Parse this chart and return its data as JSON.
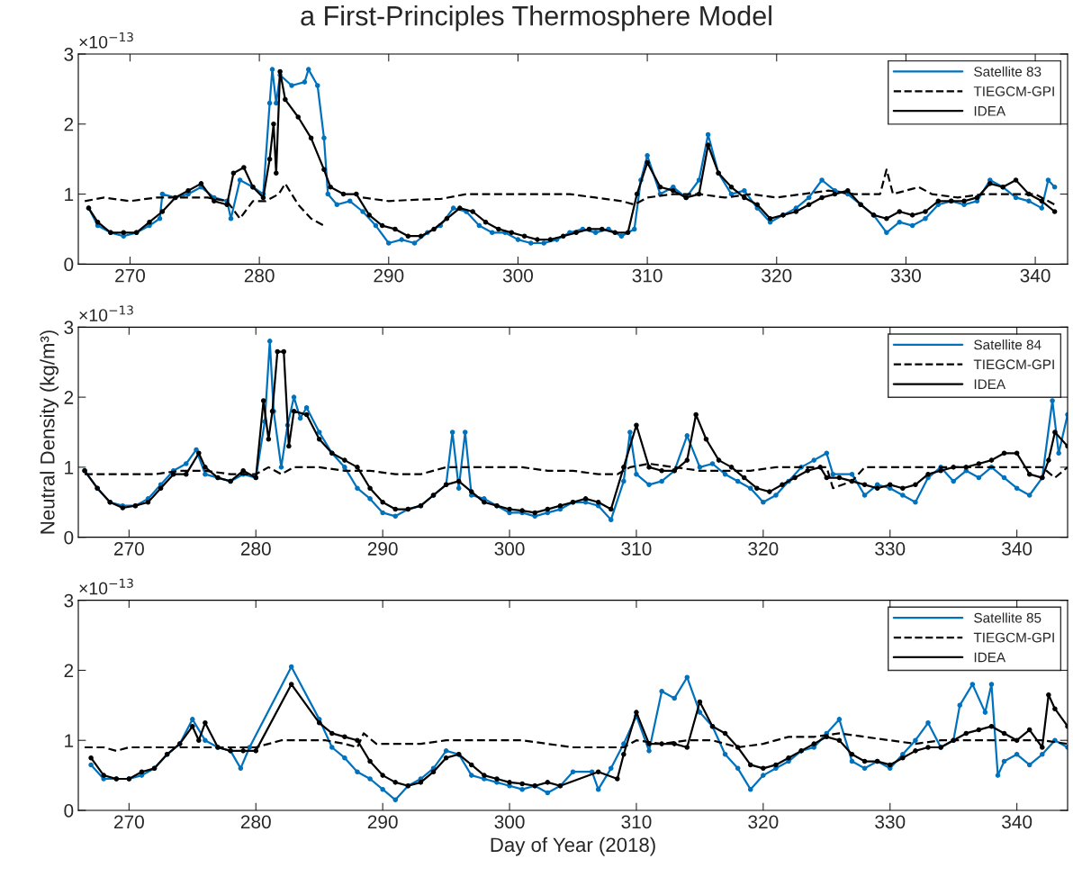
{
  "chart_data": [
    {
      "type": "line",
      "title": "a First-Principles Thermosphere Model",
      "annotations": [
        "×10$^{−13}$"
      ],
      "xlim": [
        266,
        342.5
      ],
      "xticks": [
        270,
        280,
        290,
        300,
        310,
        320,
        330,
        340
      ],
      "ylim": [
        0,
        3
      ],
      "yticks": [
        0,
        1,
        2,
        3
      ],
      "legend": "top right",
      "grid": false,
      "series": [
        {
          "name": "Satellite 83",
          "color": "#0072bd",
          "marker": "circle",
          "line_style": "solid",
          "x": [
            266.8,
            267.5,
            268.5,
            269.5,
            270.5,
            271.5,
            272.3,
            272.5,
            273.5,
            274.5,
            275.5,
            276.5,
            277.5,
            277.8,
            278.5,
            279.5,
            280.3,
            280.8,
            281.0,
            281.3,
            281.6,
            282.5,
            283.5,
            283.8,
            284.5,
            285.0,
            285.3,
            286,
            287,
            288,
            289,
            290,
            291,
            292,
            293,
            294,
            295,
            296,
            297,
            298,
            299,
            300,
            301,
            302,
            303,
            304,
            305,
            306,
            307,
            308,
            309,
            309.5,
            310,
            311,
            312,
            313,
            314,
            314.7,
            315.5,
            316.5,
            317.5,
            318.5,
            319.5,
            320.5,
            321.5,
            322.5,
            323.5,
            324.5,
            325.5,
            326.5,
            327.5,
            328.5,
            329.5,
            330.5,
            331.5,
            332.5,
            333.5,
            334.5,
            335.5,
            336.5,
            337.5,
            338.5,
            339.5,
            340.5,
            341,
            341.5
          ],
          "values": [
            0.8,
            0.55,
            0.45,
            0.4,
            0.45,
            0.55,
            0.65,
            1.0,
            0.95,
            1.0,
            1.1,
            0.95,
            0.9,
            0.65,
            1.2,
            1.1,
            1.0,
            2.3,
            2.78,
            2.3,
            2.7,
            2.55,
            2.6,
            2.78,
            2.55,
            1.8,
            1.0,
            0.85,
            0.9,
            0.75,
            0.55,
            0.3,
            0.35,
            0.3,
            0.45,
            0.55,
            0.8,
            0.75,
            0.55,
            0.45,
            0.45,
            0.35,
            0.3,
            0.3,
            0.35,
            0.45,
            0.5,
            0.45,
            0.5,
            0.4,
            0.5,
            1.2,
            1.55,
            1.0,
            1.1,
            0.95,
            1.2,
            1.85,
            1.3,
            1.0,
            1.05,
            0.8,
            0.6,
            0.7,
            0.8,
            0.95,
            1.2,
            1.05,
            1.0,
            0.85,
            0.7,
            0.45,
            0.6,
            0.55,
            0.65,
            0.85,
            0.9,
            0.85,
            0.9,
            1.2,
            1.1,
            0.95,
            0.9,
            0.8,
            1.2,
            1.1
          ]
        },
        {
          "name": "TIEGCM-GPI",
          "color": "#000000",
          "marker": "none",
          "line_style": "dashed",
          "x": [
            266.5,
            268,
            270,
            272,
            274,
            276,
            277.5,
            278.5,
            279.5,
            280.5,
            281.5,
            282,
            283,
            284,
            285,
            286.5,
            288,
            290,
            292,
            294,
            296,
            298,
            300,
            302,
            304,
            306,
            308,
            309,
            310,
            312,
            314,
            316,
            318,
            320,
            322,
            324,
            326,
            328,
            328.5,
            329,
            330,
            331,
            332,
            334,
            336,
            338,
            340,
            341.5
          ],
          "values": [
            0.9,
            0.95,
            0.9,
            0.95,
            0.95,
            0.95,
            0.9,
            0.65,
            0.9,
            0.9,
            1.0,
            1.15,
            0.85,
            0.65,
            0.55,
            null,
            0.95,
            0.9,
            0.92,
            0.93,
            1.0,
            1.0,
            1.0,
            1.0,
            1.0,
            0.95,
            0.9,
            0.85,
            0.95,
            1.0,
            1.0,
            0.95,
            1.0,
            0.95,
            1.0,
            1.05,
            1.0,
            1.0,
            1.35,
            1.0,
            1.05,
            1.1,
            1.0,
            0.95,
            1.0,
            1.0,
            1.0,
            0.85
          ]
        },
        {
          "name": "IDEA",
          "color": "#000000",
          "marker": "circle",
          "line_style": "solid",
          "x": [
            266.8,
            267.5,
            268.5,
            269.5,
            270.5,
            271.5,
            272.5,
            273.5,
            274.5,
            275.5,
            276.5,
            277.5,
            278,
            278.8,
            279.5,
            280.3,
            280.8,
            281.1,
            281.3,
            281.6,
            282,
            283,
            284,
            285,
            285.5,
            286.5,
            287.5,
            288.5,
            289.5,
            290.5,
            291.5,
            292.5,
            293.5,
            294.5,
            295.5,
            296.5,
            297.5,
            298.5,
            299.5,
            300.5,
            301.5,
            302.5,
            303.5,
            304.5,
            305.5,
            306.5,
            307.5,
            308.5,
            309.2,
            310,
            311,
            312,
            313,
            314,
            314.7,
            315.5,
            316.5,
            317.5,
            318.5,
            319.5,
            320.5,
            321.5,
            322.5,
            323.5,
            324.5,
            325.5,
            326.5,
            327.5,
            328.5,
            329.5,
            330.5,
            331.5,
            332.5,
            333.5,
            334.5,
            335.5,
            336.5,
            337.5,
            338.5,
            339.5,
            340.5,
            341.5
          ],
          "values": [
            0.8,
            0.6,
            0.45,
            0.45,
            0.45,
            0.6,
            0.75,
            0.95,
            1.05,
            1.15,
            0.9,
            0.85,
            1.3,
            1.38,
            1.1,
            0.95,
            1.5,
            2.0,
            1.3,
            2.75,
            2.35,
            2.1,
            1.8,
            1.35,
            1.1,
            1.0,
            1.0,
            0.7,
            0.55,
            0.5,
            0.4,
            0.4,
            0.5,
            0.65,
            0.8,
            0.75,
            0.6,
            0.5,
            0.45,
            0.4,
            0.35,
            0.35,
            0.4,
            0.45,
            0.5,
            0.5,
            0.45,
            0.45,
            1.0,
            1.45,
            1.1,
            1.05,
            0.95,
            1.0,
            1.7,
            1.3,
            1.1,
            0.95,
            0.85,
            0.65,
            0.7,
            0.75,
            0.85,
            0.95,
            1.0,
            1.05,
            0.85,
            0.7,
            0.65,
            0.75,
            0.7,
            0.75,
            0.9,
            0.9,
            0.9,
            0.95,
            1.15,
            1.1,
            1.2,
            1.0,
            0.9,
            0.75
          ]
        }
      ]
    },
    {
      "type": "line",
      "ylabel": "Neutral Density (kg/m³)",
      "annotations": [
        "×10$^{−13}$"
      ],
      "xlim": [
        266,
        344
      ],
      "xticks": [
        270,
        280,
        290,
        300,
        310,
        320,
        330,
        340
      ],
      "ylim": [
        0,
        3
      ],
      "yticks": [
        0,
        1,
        2,
        3
      ],
      "legend": "top right",
      "grid": false,
      "series": [
        {
          "name": "Satellite 84",
          "color": "#0072bd",
          "marker": "circle",
          "line_style": "solid",
          "x": [
            266.5,
            267.5,
            268.5,
            269.5,
            270.5,
            271.5,
            272.5,
            273.5,
            274.5,
            275.3,
            276,
            277,
            278,
            279,
            280,
            280.7,
            281.1,
            281.4,
            282,
            282.5,
            283,
            283.5,
            284,
            285,
            286,
            287,
            288,
            289,
            290,
            291,
            292,
            293,
            294,
            295,
            295.5,
            296,
            296.5,
            297,
            298,
            299,
            300,
            301,
            302,
            303,
            304,
            305,
            306,
            307,
            308,
            309,
            309.5,
            310,
            311,
            312,
            313,
            314,
            315,
            316,
            317,
            318,
            319,
            320,
            321,
            322,
            323,
            324,
            325,
            325.5,
            327,
            328,
            329,
            330,
            331,
            332,
            333,
            334,
            335,
            336,
            337,
            338,
            339,
            340,
            341,
            342,
            342.8,
            343.3,
            344
          ],
          "values": [
            0.95,
            0.7,
            0.5,
            0.45,
            0.45,
            0.55,
            0.75,
            0.95,
            1.05,
            1.25,
            0.9,
            0.85,
            0.8,
            0.9,
            0.85,
            1.65,
            2.8,
            1.8,
            1.0,
            1.6,
            2.0,
            1.7,
            1.85,
            1.5,
            1.2,
            1.0,
            0.7,
            0.55,
            0.35,
            0.3,
            0.4,
            0.45,
            0.6,
            0.75,
            1.5,
            0.7,
            1.5,
            0.6,
            0.55,
            0.45,
            0.35,
            0.35,
            0.3,
            0.35,
            0.4,
            0.5,
            0.5,
            0.45,
            0.25,
            0.8,
            1.5,
            0.9,
            0.75,
            0.8,
            0.95,
            1.45,
            1.0,
            1.05,
            0.9,
            0.8,
            0.7,
            0.5,
            0.6,
            0.8,
            1.0,
            1.1,
            1.2,
            0.9,
            0.9,
            0.6,
            0.75,
            0.7,
            0.6,
            0.5,
            0.85,
            1.0,
            0.8,
            0.95,
            0.85,
            1.0,
            0.85,
            0.7,
            0.6,
            0.85,
            1.95,
            1.2,
            1.75
          ]
        },
        {
          "name": "TIEGCM-GPI",
          "color": "#000000",
          "marker": "none",
          "line_style": "dashed",
          "x": [
            266.5,
            268,
            270,
            272,
            274,
            276,
            278,
            280,
            281,
            282,
            283,
            285,
            287,
            289,
            291,
            293,
            295,
            297,
            299,
            301,
            303,
            305,
            307,
            308.5,
            309.5,
            311,
            313,
            315,
            317,
            319,
            321,
            323,
            325,
            325.5,
            327,
            328,
            330,
            332,
            334,
            336,
            338,
            340,
            342,
            343,
            344
          ],
          "values": [
            0.9,
            0.9,
            0.9,
            0.9,
            0.95,
            0.95,
            0.9,
            0.9,
            1.0,
            0.9,
            1.0,
            1.0,
            0.95,
            0.95,
            0.9,
            0.9,
            1.0,
            1.0,
            1.0,
            1.0,
            0.95,
            0.95,
            0.9,
            0.9,
            1.0,
            1.05,
            1.0,
            0.95,
            0.95,
            0.95,
            1.0,
            1.0,
            1.0,
            0.7,
            0.8,
            1.0,
            1.0,
            1.0,
            1.0,
            1.0,
            1.0,
            1.0,
            1.0,
            0.85,
            1.0
          ]
        },
        {
          "name": "IDEA",
          "color": "#000000",
          "marker": "circle",
          "line_style": "solid",
          "x": [
            266.5,
            267.5,
            268.5,
            269.5,
            270.5,
            271.5,
            272.5,
            273.5,
            274.5,
            275.5,
            276,
            277,
            278,
            279,
            280,
            280.6,
            281,
            281.3,
            281.7,
            282.2,
            282.6,
            283,
            284,
            285,
            286,
            287,
            288,
            289,
            290,
            291,
            292,
            293,
            294,
            295,
            296,
            297,
            298,
            299,
            300,
            301,
            302,
            303,
            304,
            305,
            306,
            307,
            308,
            309,
            310,
            311,
            312,
            313,
            314,
            314.7,
            315.5,
            316.5,
            317.5,
            318.5,
            319.5,
            320.5,
            321.5,
            322.5,
            323.5,
            324.5,
            325,
            326,
            327,
            328,
            329,
            330,
            331,
            332,
            333,
            334,
            335,
            336,
            337,
            338,
            339,
            340,
            341,
            342,
            342.5,
            343,
            344
          ],
          "values": [
            0.95,
            0.7,
            0.5,
            0.42,
            0.45,
            0.5,
            0.7,
            0.9,
            0.9,
            1.2,
            1.0,
            0.85,
            0.8,
            0.95,
            0.85,
            1.95,
            1.4,
            1.8,
            2.65,
            2.65,
            1.3,
            1.8,
            1.75,
            1.4,
            1.2,
            1.1,
            1.0,
            0.7,
            0.5,
            0.4,
            0.4,
            0.45,
            0.6,
            0.75,
            0.8,
            0.65,
            0.5,
            0.45,
            0.4,
            0.38,
            0.35,
            0.4,
            0.45,
            0.5,
            0.55,
            0.5,
            0.4,
            1.0,
            1.6,
            1.0,
            0.95,
            0.95,
            1.1,
            1.75,
            1.4,
            1.1,
            1.0,
            0.85,
            0.7,
            0.65,
            0.75,
            0.85,
            0.95,
            1.0,
            0.85,
            0.85,
            0.8,
            0.75,
            0.7,
            0.75,
            0.7,
            0.75,
            0.9,
            0.95,
            1.0,
            1.0,
            1.05,
            1.1,
            1.2,
            1.2,
            0.9,
            0.85,
            1.1,
            1.5,
            1.3
          ]
        }
      ]
    },
    {
      "type": "line",
      "xlabel": "Day of Year (2018)",
      "annotations": [
        "×10$^{−13}$"
      ],
      "xlim": [
        266,
        344
      ],
      "xticks": [
        270,
        280,
        290,
        300,
        310,
        320,
        330,
        340
      ],
      "ylim": [
        0,
        3
      ],
      "yticks": [
        0,
        1,
        2,
        3
      ],
      "legend": "top right",
      "grid": false,
      "series": [
        {
          "name": "Satellite 85",
          "color": "#0072bd",
          "marker": "circle",
          "line_style": "solid",
          "x": [
            267,
            268,
            269,
            270,
            271,
            272,
            273,
            274,
            275,
            276,
            277,
            278,
            278.8,
            279.5,
            282.8,
            285,
            286,
            287,
            288,
            289,
            290,
            291,
            292,
            293,
            294,
            295,
            296,
            297,
            298,
            299,
            300,
            301,
            302,
            303,
            304,
            305,
            306.5,
            307,
            308,
            309,
            310,
            311,
            312,
            313,
            314,
            315,
            316,
            317,
            318,
            319,
            320,
            321,
            322,
            323,
            324,
            325,
            326,
            327,
            328,
            329,
            330,
            331,
            332,
            333,
            334,
            335,
            335.5,
            336.5,
            337.5,
            338,
            338.5,
            339,
            340,
            341,
            342,
            343,
            344
          ],
          "values": [
            0.65,
            0.45,
            0.45,
            0.45,
            0.5,
            0.6,
            0.8,
            0.95,
            1.3,
            1.0,
            0.9,
            0.85,
            0.6,
            0.9,
            2.05,
            1.3,
            0.9,
            0.75,
            0.55,
            0.45,
            0.3,
            0.15,
            0.35,
            0.45,
            0.6,
            0.85,
            0.8,
            0.5,
            0.45,
            0.4,
            0.35,
            0.3,
            0.35,
            0.25,
            0.35,
            0.55,
            0.55,
            0.3,
            0.6,
            0.95,
            1.35,
            0.85,
            1.7,
            1.6,
            1.9,
            1.4,
            1.2,
            0.8,
            0.6,
            0.3,
            0.5,
            0.6,
            0.7,
            0.85,
            0.9,
            1.1,
            1.3,
            0.7,
            0.6,
            0.7,
            0.6,
            0.8,
            1.0,
            1.25,
            0.9,
            1.0,
            1.5,
            1.8,
            1.4,
            1.8,
            0.5,
            0.7,
            0.8,
            0.65,
            0.8,
            1.0,
            0.9
          ]
        },
        {
          "name": "TIEGCM-GPI",
          "color": "#000000",
          "marker": "none",
          "line_style": "dashed",
          "x": [
            266.5,
            268,
            269,
            270,
            272,
            274,
            276,
            278,
            280,
            282,
            284,
            285.5,
            287,
            288,
            288.5,
            289.5,
            291,
            293,
            295,
            297,
            299,
            301,
            303,
            305,
            307,
            309,
            310,
            312,
            314,
            316,
            318,
            320,
            322,
            324,
            326,
            328,
            330,
            332,
            334,
            336,
            338,
            340,
            342,
            344
          ],
          "values": [
            0.9,
            0.9,
            0.85,
            0.9,
            0.9,
            0.9,
            0.9,
            0.9,
            0.9,
            1.0,
            1.0,
            1.0,
            0.95,
            0.9,
            1.1,
            0.95,
            0.95,
            0.95,
            1.0,
            1.0,
            1.0,
            1.0,
            0.95,
            0.9,
            0.9,
            0.9,
            1.0,
            0.95,
            1.0,
            1.0,
            0.9,
            0.95,
            1.05,
            1.05,
            1.1,
            1.05,
            1.0,
            0.95,
            1.0,
            1.0,
            1.0,
            1.0,
            1.0,
            0.95
          ]
        },
        {
          "name": "IDEA",
          "color": "#000000",
          "marker": "circle",
          "line_style": "solid",
          "x": [
            267,
            268,
            269,
            270,
            271,
            272,
            273,
            274,
            275,
            275.5,
            276,
            277,
            278,
            279,
            280,
            282.8,
            285,
            286,
            287,
            288,
            289,
            290,
            291,
            292,
            293,
            294,
            295,
            296,
            297,
            298,
            299,
            300,
            301,
            302,
            303,
            304,
            307,
            308.5,
            309,
            310,
            311,
            312,
            313,
            314,
            315,
            316,
            317,
            318,
            319,
            320,
            321,
            322,
            323,
            324,
            325,
            326,
            327,
            328,
            329,
            330,
            331,
            332,
            333,
            334,
            335,
            336,
            337,
            338,
            339,
            340,
            341,
            342,
            342.5,
            343,
            344
          ],
          "values": [
            0.75,
            0.5,
            0.45,
            0.45,
            0.55,
            0.6,
            0.8,
            0.95,
            1.2,
            1.0,
            1.25,
            0.9,
            0.85,
            0.85,
            0.85,
            1.8,
            1.25,
            1.1,
            1.05,
            1.0,
            0.7,
            0.5,
            0.4,
            0.35,
            0.4,
            0.55,
            0.75,
            0.8,
            0.65,
            0.5,
            0.45,
            0.4,
            0.38,
            0.35,
            0.4,
            0.35,
            0.55,
            0.45,
            0.8,
            1.4,
            0.95,
            0.95,
            0.95,
            0.9,
            1.55,
            1.2,
            1.1,
            0.9,
            0.65,
            0.6,
            0.65,
            0.75,
            0.85,
            0.95,
            1.05,
            1.0,
            0.8,
            0.7,
            0.7,
            0.65,
            0.75,
            0.85,
            0.9,
            0.9,
            1.0,
            1.1,
            1.15,
            1.2,
            1.1,
            1.0,
            1.15,
            0.9,
            1.65,
            1.45,
            1.2
          ]
        }
      ]
    }
  ]
}
